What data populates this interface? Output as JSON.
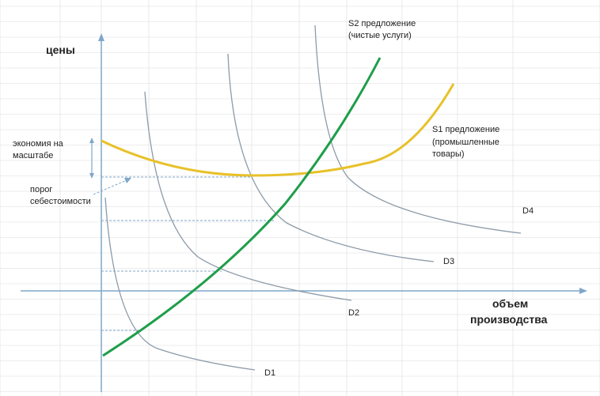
{
  "labels": {
    "y_axis": "цены",
    "x_axis_line1": "объем",
    "x_axis_line2": "производства",
    "s2_line1": "S2 предложение",
    "s2_line2": "(чистые услуги)",
    "s1_line1": "S1 предложение",
    "s1_line2": "(промышленные",
    "s1_line3": "товары)",
    "economy_line1": "экономия на",
    "economy_line2": "масштабе",
    "threshold_line1": "порог",
    "threshold_line2": "себестоимости",
    "d1": "D1",
    "d2": "D2",
    "d3": "D3",
    "d4": "D4"
  },
  "colors": {
    "grid": "#dcdcdc",
    "axis": "#7fa7c9",
    "demand": "#8c9aa8",
    "s1": "#e8c12a",
    "s2": "#1e9e4a",
    "dashed": "#7fa7c9"
  }
}
